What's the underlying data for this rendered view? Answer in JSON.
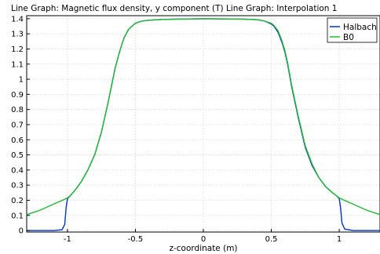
{
  "chart_data": {
    "type": "line",
    "title": "Line Graph: Magnetic flux density, y component (T)  Line Graph: Interpolation 1",
    "xlabel": "z-coordinate (m)",
    "ylabel": "",
    "xlim": [
      -1.3,
      1.3
    ],
    "ylim": [
      -0.01,
      1.42
    ],
    "x_ticks": [
      {
        "value": -1,
        "label": "-1"
      },
      {
        "value": -0.5,
        "label": "-0.5"
      },
      {
        "value": 0,
        "label": "0"
      },
      {
        "value": 0.5,
        "label": "0.5"
      },
      {
        "value": 1,
        "label": "1"
      }
    ],
    "y_ticks": [
      {
        "value": 0,
        "label": "0"
      },
      {
        "value": 0.1,
        "label": "0.1"
      },
      {
        "value": 0.2,
        "label": "0.2"
      },
      {
        "value": 0.3,
        "label": "0.3"
      },
      {
        "value": 0.4,
        "label": "0.4"
      },
      {
        "value": 0.5,
        "label": "0.5"
      },
      {
        "value": 0.6,
        "label": "0.6"
      },
      {
        "value": 0.7,
        "label": "0.7"
      },
      {
        "value": 0.8,
        "label": "0.8"
      },
      {
        "value": 0.9,
        "label": "0.9"
      },
      {
        "value": 1,
        "label": "1"
      },
      {
        "value": 1.1,
        "label": "1.1"
      },
      {
        "value": 1.2,
        "label": "1.2"
      },
      {
        "value": 1.3,
        "label": "1.3"
      },
      {
        "value": 1.4,
        "label": "1.4"
      }
    ],
    "grid": true,
    "legend_position": "top-right",
    "series": [
      {
        "name": "Halbach",
        "color": "#0033cc",
        "x": [
          -1.3,
          -1.1,
          -1.04,
          -1.02,
          -1.01,
          -1.0,
          -0.98,
          -0.95,
          -0.9,
          -0.85,
          -0.8,
          -0.75,
          -0.7,
          -0.65,
          -0.62,
          -0.6,
          -0.58,
          -0.55,
          -0.5,
          -0.45,
          -0.4,
          -0.3,
          -0.2,
          -0.1,
          0,
          0.1,
          0.2,
          0.3,
          0.4,
          0.45,
          0.5,
          0.52,
          0.55,
          0.58,
          0.6,
          0.62,
          0.65,
          0.7,
          0.75,
          0.8,
          0.85,
          0.9,
          0.95,
          0.98,
          1.0,
          1.01,
          1.02,
          1.04,
          1.1,
          1.3
        ],
        "y": [
          0.0,
          0.0,
          0.005,
          0.04,
          0.15,
          0.21,
          0.23,
          0.26,
          0.32,
          0.4,
          0.5,
          0.65,
          0.85,
          1.07,
          1.17,
          1.23,
          1.28,
          1.33,
          1.37,
          1.385,
          1.39,
          1.395,
          1.397,
          1.398,
          1.4,
          1.399,
          1.398,
          1.397,
          1.393,
          1.385,
          1.365,
          1.35,
          1.31,
          1.24,
          1.18,
          1.1,
          0.95,
          0.74,
          0.55,
          0.43,
          0.35,
          0.29,
          0.25,
          0.23,
          0.21,
          0.15,
          0.05,
          0.01,
          0.0,
          0.0
        ]
      },
      {
        "name": "B0",
        "color": "#22bb33",
        "x": [
          -1.3,
          -1.25,
          -1.2,
          -1.15,
          -1.1,
          -1.05,
          -1.0,
          -0.98,
          -0.95,
          -0.9,
          -0.85,
          -0.8,
          -0.75,
          -0.7,
          -0.65,
          -0.62,
          -0.6,
          -0.58,
          -0.55,
          -0.5,
          -0.45,
          -0.4,
          -0.3,
          -0.2,
          -0.1,
          0,
          0.1,
          0.2,
          0.3,
          0.4,
          0.45,
          0.5,
          0.52,
          0.55,
          0.58,
          0.6,
          0.62,
          0.65,
          0.7,
          0.75,
          0.8,
          0.85,
          0.9,
          0.95,
          0.98,
          1.0,
          1.05,
          1.1,
          1.15,
          1.2,
          1.25,
          1.3
        ],
        "y": [
          0.105,
          0.12,
          0.135,
          0.155,
          0.175,
          0.195,
          0.215,
          0.23,
          0.26,
          0.32,
          0.4,
          0.5,
          0.65,
          0.85,
          1.07,
          1.17,
          1.23,
          1.28,
          1.33,
          1.37,
          1.385,
          1.39,
          1.395,
          1.397,
          1.398,
          1.4,
          1.399,
          1.398,
          1.397,
          1.393,
          1.385,
          1.37,
          1.355,
          1.32,
          1.25,
          1.19,
          1.11,
          0.96,
          0.75,
          0.56,
          0.44,
          0.35,
          0.29,
          0.25,
          0.23,
          0.215,
          0.195,
          0.175,
          0.155,
          0.135,
          0.12,
          0.105
        ]
      }
    ]
  }
}
